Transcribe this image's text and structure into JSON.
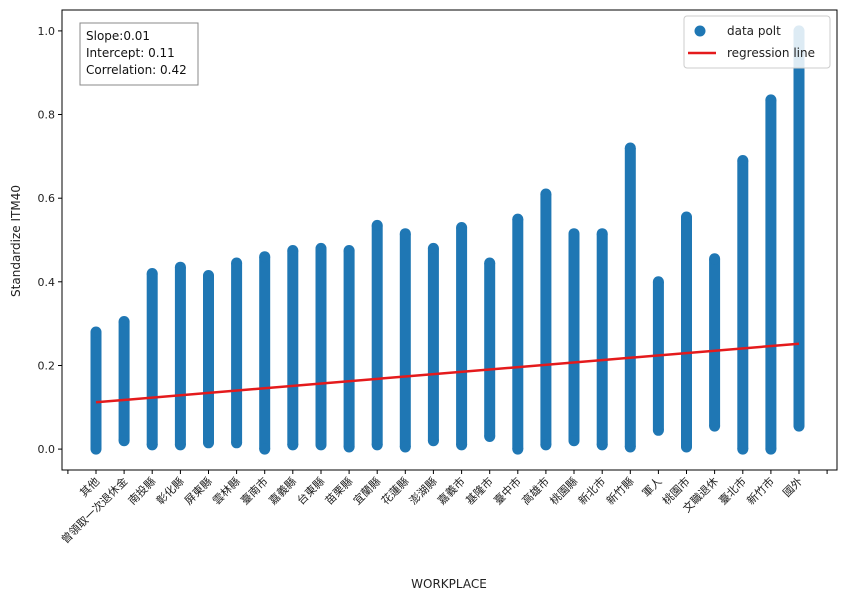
{
  "chart_data": {
    "type": "scatter",
    "xlabel": "WORKPLACE",
    "ylabel": "Standardize ITM40",
    "categories": [
      "其他",
      "曾領取一次退休金",
      "南投縣",
      "彰化縣",
      "屏東縣",
      "雲林縣",
      "臺南市",
      "嘉義縣",
      "台東縣",
      "苗栗縣",
      "宜蘭縣",
      "花蓮縣",
      "澎湖縣",
      "嘉義市",
      "基隆市",
      "臺中市",
      "高雄市",
      "桃園縣",
      "新北市",
      "新竹縣",
      "軍人",
      "桃園市",
      "文職退休",
      "臺北市",
      "新竹市",
      "國外"
    ],
    "ranges": [
      [
        0.0,
        0.28
      ],
      [
        0.02,
        0.305
      ],
      [
        0.01,
        0.42
      ],
      [
        0.01,
        0.435
      ],
      [
        0.015,
        0.415
      ],
      [
        0.015,
        0.445
      ],
      [
        0.0,
        0.46
      ],
      [
        0.01,
        0.475
      ],
      [
        0.01,
        0.48
      ],
      [
        0.005,
        0.475
      ],
      [
        0.01,
        0.535
      ],
      [
        0.005,
        0.515
      ],
      [
        0.02,
        0.48
      ],
      [
        0.01,
        0.53
      ],
      [
        0.03,
        0.445
      ],
      [
        0.0,
        0.55
      ],
      [
        0.01,
        0.61
      ],
      [
        0.02,
        0.515
      ],
      [
        0.01,
        0.515
      ],
      [
        0.005,
        0.72
      ],
      [
        0.045,
        0.4
      ],
      [
        0.005,
        0.555
      ],
      [
        0.055,
        0.455
      ],
      [
        0.0,
        0.69
      ],
      [
        0.0,
        0.835
      ],
      [
        0.055,
        1.0
      ]
    ],
    "regression": {
      "start": [
        0,
        0.112
      ],
      "end": [
        25,
        0.252
      ]
    },
    "ylim": [
      -0.05,
      1.05
    ],
    "yticks": [
      "0.0",
      "0.2",
      "0.4",
      "0.6",
      "0.8",
      "1.0"
    ],
    "series": [
      {
        "name": "data polt",
        "color": "#1f77b4"
      },
      {
        "name": "regression line",
        "color": "#e41a1c"
      }
    ],
    "legend_position": "top-right",
    "grid": false
  },
  "stats": {
    "slope": "Slope:0.01",
    "intercept": "Intercept: 0.11",
    "correlation": "Correlation: 0.42"
  }
}
